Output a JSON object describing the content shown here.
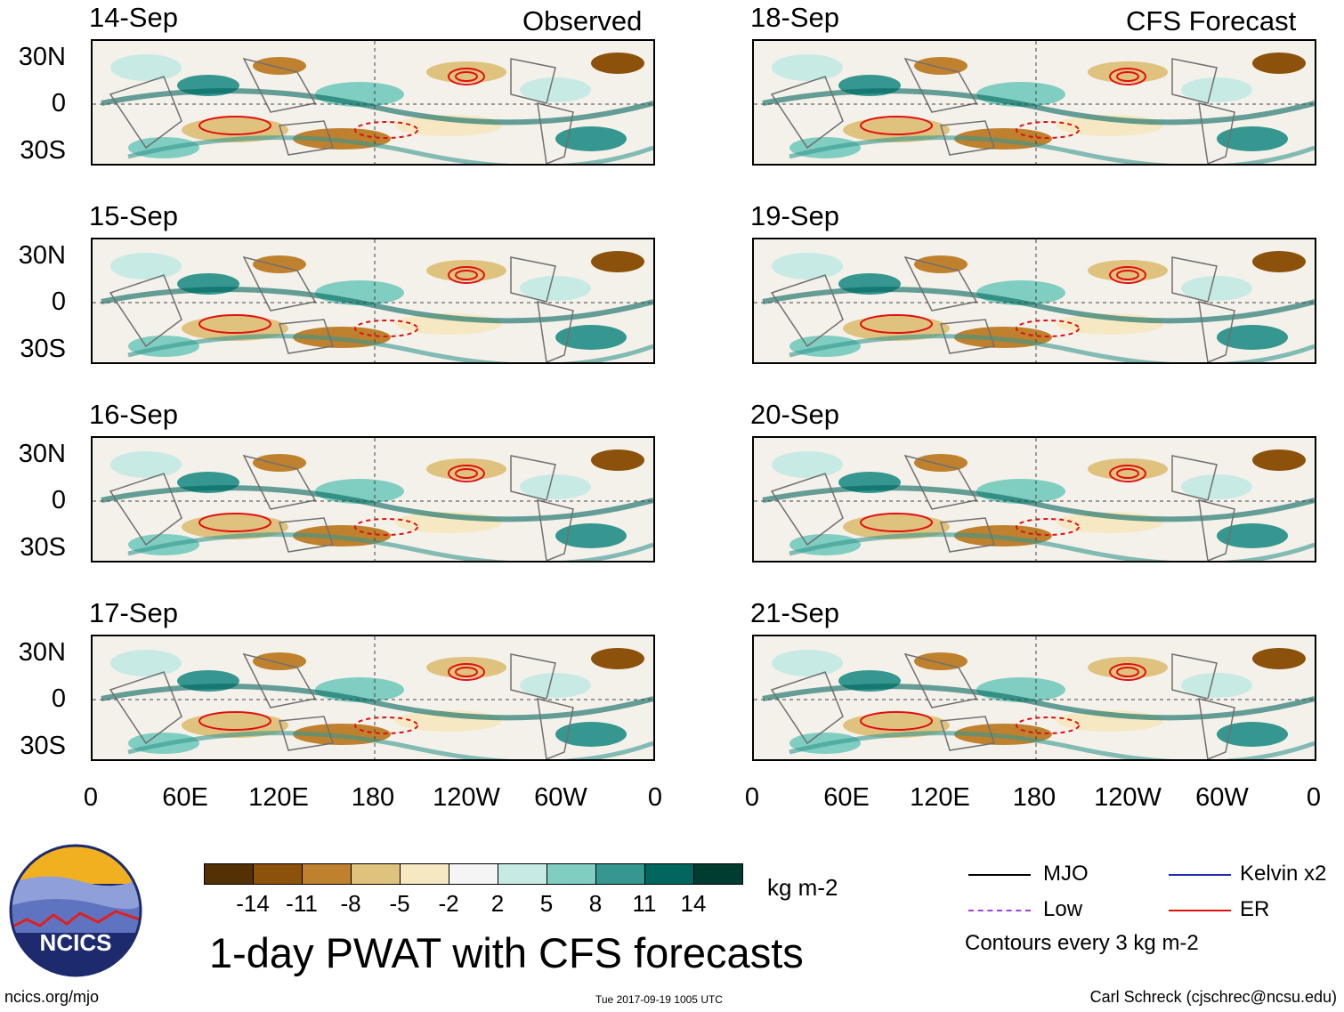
{
  "observed_label": "Observed",
  "forecast_label": "CFS Forecast",
  "panels_left": [
    {
      "date": "14-Sep"
    },
    {
      "date": "15-Sep"
    },
    {
      "date": "16-Sep"
    },
    {
      "date": "17-Sep"
    }
  ],
  "panels_right": [
    {
      "date": "18-Sep"
    },
    {
      "date": "19-Sep"
    },
    {
      "date": "20-Sep"
    },
    {
      "date": "21-Sep"
    }
  ],
  "lat_labels": [
    "30N",
    "0",
    "30S"
  ],
  "lon_labels": [
    "0",
    "60E",
    "120E",
    "180",
    "120W",
    "60W",
    "0"
  ],
  "colorbar": {
    "colors": [
      "#543005",
      "#8c510a",
      "#bf812d",
      "#dfc27d",
      "#f6e8c3",
      "#f5f5f5",
      "#c7eae5",
      "#80cdc1",
      "#35978f",
      "#01665e",
      "#003c30"
    ],
    "labels": [
      "-14",
      "-11",
      "-8",
      "-5",
      "-2",
      "2",
      "5",
      "8",
      "11",
      "14"
    ],
    "unit": "kg m-2"
  },
  "title": "1-day PWAT with CFS forecasts",
  "legend": {
    "items": [
      {
        "label": "MJO",
        "color": "#000000"
      },
      {
        "label": "Kelvin x2",
        "color": "#1f2fb0"
      },
      {
        "label": "Low",
        "color": "#a040e0"
      },
      {
        "label": "ER",
        "color": "#e01010"
      }
    ],
    "note": "Contours every 3 kg m-2"
  },
  "logo_text": "NCICS",
  "footer": {
    "url": "ncics.org/mjo",
    "timestamp": "Tue 2017-09-19 1005 UTC",
    "credit": "Carl Schreck (cjschrec@ncsu.edu)"
  }
}
